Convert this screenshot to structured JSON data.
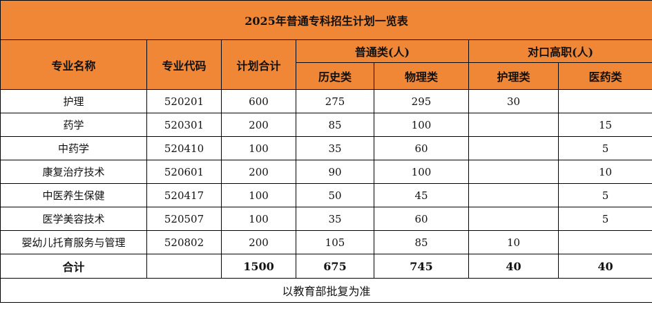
{
  "title": "2025年普通专科招生计划一览表",
  "header": {
    "major_name": "专业名称",
    "major_code": "专业代码",
    "plan_total": "计划合计",
    "general": "普通类(人)",
    "vocational": "对口高职(人)",
    "history": "历史类",
    "physics": "物理类",
    "nursing": "护理类",
    "medicine": "医药类"
  },
  "rows": [
    {
      "name": "护理",
      "code": "520201",
      "total": "600",
      "history": "275",
      "physics": "295",
      "nursing": "30",
      "medicine": ""
    },
    {
      "name": "药学",
      "code": "520301",
      "total": "200",
      "history": "85",
      "physics": "100",
      "nursing": "",
      "medicine": "15"
    },
    {
      "name": "中药学",
      "code": "520410",
      "total": "100",
      "history": "35",
      "physics": "60",
      "nursing": "",
      "medicine": "5"
    },
    {
      "name": "康复治疗技术",
      "code": "520601",
      "total": "200",
      "history": "90",
      "physics": "100",
      "nursing": "",
      "medicine": "10"
    },
    {
      "name": "中医养生保健",
      "code": "520417",
      "total": "100",
      "history": "50",
      "physics": "45",
      "nursing": "",
      "medicine": "5"
    },
    {
      "name": "医学美容技术",
      "code": "520507",
      "total": "100",
      "history": "35",
      "physics": "60",
      "nursing": "",
      "medicine": "5"
    },
    {
      "name": "婴幼儿托育服务与管理",
      "code": "520802",
      "total": "200",
      "history": "105",
      "physics": "85",
      "nursing": "10",
      "medicine": ""
    }
  ],
  "totals": {
    "label": "合计",
    "code": "",
    "total": "1500",
    "history": "675",
    "physics": "745",
    "nursing": "40",
    "medicine": "40"
  },
  "note": "以教育部批复为准",
  "colors": {
    "header_bg": "#f08737",
    "border": "#000000"
  }
}
